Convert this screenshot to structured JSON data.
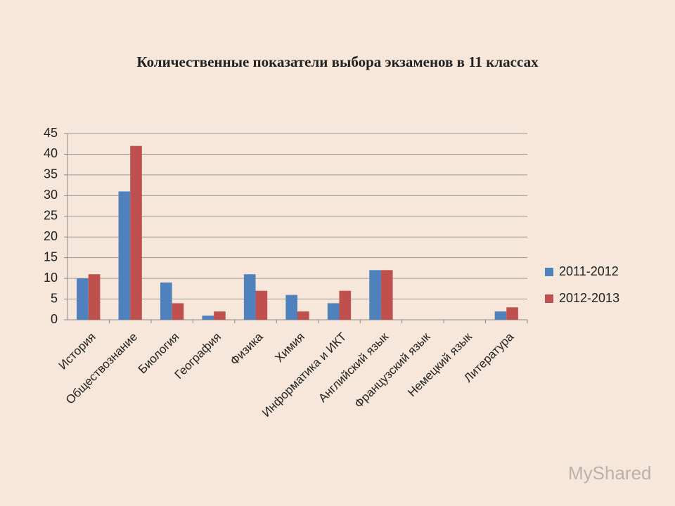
{
  "chart_data": {
    "type": "bar",
    "title": "Количественные показатели выбора экзаменов в 11 классах",
    "categories": [
      "История",
      "Обществознание",
      "Биология",
      "География",
      "Физика",
      "Химия",
      "Информатика и ИКТ",
      "Английский язык",
      "Французский язык",
      "Немецкий язык",
      "Литература"
    ],
    "series": [
      {
        "name": "2011-2012",
        "color": "#4f81bd",
        "values": [
          10,
          31,
          9,
          1,
          11,
          6,
          4,
          12,
          0,
          0,
          2
        ]
      },
      {
        "name": "2012-2013",
        "color": "#c0504d",
        "values": [
          11,
          42,
          4,
          2,
          7,
          2,
          7,
          12,
          0,
          0,
          3
        ]
      }
    ],
    "ylim": [
      0,
      45
    ],
    "yticks": [
      0,
      5,
      10,
      15,
      20,
      25,
      30,
      35,
      40,
      45
    ],
    "grid": true,
    "legend": "right",
    "watermark": "MyShared"
  }
}
